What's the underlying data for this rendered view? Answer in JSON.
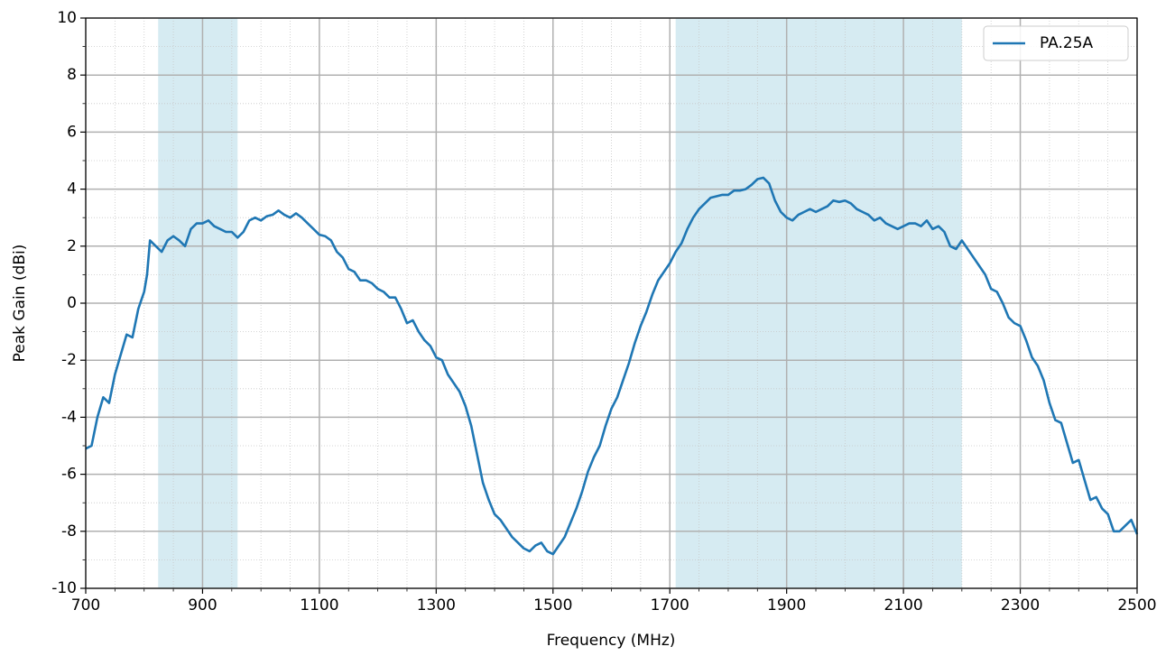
{
  "chart_data": {
    "type": "line",
    "xlabel": "Frequency (MHz)",
    "ylabel": "Peak Gain (dBi)",
    "x": [
      700,
      710,
      720,
      730,
      740,
      750,
      760,
      770,
      780,
      790,
      800,
      805,
      810,
      820,
      830,
      840,
      850,
      860,
      870,
      880,
      890,
      900,
      910,
      920,
      930,
      940,
      950,
      960,
      970,
      980,
      990,
      1000,
      1010,
      1020,
      1030,
      1040,
      1050,
      1060,
      1070,
      1080,
      1090,
      1100,
      1110,
      1120,
      1130,
      1140,
      1150,
      1160,
      1170,
      1180,
      1190,
      1200,
      1210,
      1220,
      1230,
      1240,
      1250,
      1260,
      1270,
      1280,
      1290,
      1300,
      1310,
      1320,
      1330,
      1340,
      1350,
      1360,
      1370,
      1380,
      1390,
      1400,
      1410,
      1420,
      1430,
      1440,
      1450,
      1460,
      1470,
      1480,
      1490,
      1500,
      1510,
      1520,
      1530,
      1540,
      1550,
      1560,
      1570,
      1580,
      1590,
      1600,
      1610,
      1620,
      1630,
      1640,
      1650,
      1660,
      1670,
      1680,
      1690,
      1700,
      1710,
      1720,
      1730,
      1740,
      1750,
      1760,
      1770,
      1780,
      1790,
      1800,
      1810,
      1820,
      1830,
      1840,
      1850,
      1860,
      1870,
      1880,
      1890,
      1900,
      1910,
      1920,
      1930,
      1940,
      1950,
      1960,
      1970,
      1980,
      1990,
      2000,
      2010,
      2020,
      2030,
      2040,
      2050,
      2060,
      2070,
      2080,
      2090,
      2100,
      2110,
      2120,
      2130,
      2140,
      2150,
      2160,
      2170,
      2180,
      2190,
      2200,
      2210,
      2220,
      2230,
      2240,
      2250,
      2260,
      2270,
      2280,
      2290,
      2300,
      2310,
      2320,
      2330,
      2340,
      2350,
      2360,
      2370,
      2380,
      2390,
      2400,
      2410,
      2420,
      2430,
      2440,
      2450,
      2460,
      2470,
      2480,
      2490,
      2500
    ],
    "series": [
      {
        "name": "PA.25A",
        "color": "#1f77b4",
        "values": [
          -5.1,
          -5.0,
          -4.0,
          -3.3,
          -3.5,
          -2.5,
          -1.8,
          -1.1,
          -1.2,
          -0.2,
          0.4,
          1.0,
          2.2,
          2.0,
          1.8,
          2.2,
          2.35,
          2.2,
          2.0,
          2.6,
          2.8,
          2.8,
          2.9,
          2.7,
          2.6,
          2.5,
          2.5,
          2.3,
          2.5,
          2.9,
          3.0,
          2.9,
          3.05,
          3.1,
          3.25,
          3.1,
          3.0,
          3.15,
          3.0,
          2.8,
          2.6,
          2.4,
          2.35,
          2.2,
          1.8,
          1.6,
          1.2,
          1.1,
          0.8,
          0.8,
          0.7,
          0.5,
          0.4,
          0.2,
          0.2,
          -0.2,
          -0.7,
          -0.6,
          -1.0,
          -1.3,
          -1.5,
          -1.9,
          -2.0,
          -2.5,
          -2.8,
          -3.1,
          -3.6,
          -4.3,
          -5.3,
          -6.3,
          -6.9,
          -7.4,
          -7.6,
          -7.9,
          -8.2,
          -8.4,
          -8.6,
          -8.7,
          -8.5,
          -8.4,
          -8.7,
          -8.8,
          -8.5,
          -8.2,
          -7.7,
          -7.2,
          -6.6,
          -5.9,
          -5.4,
          -5.0,
          -4.3,
          -3.7,
          -3.3,
          -2.7,
          -2.1,
          -1.4,
          -0.8,
          -0.3,
          0.3,
          0.8,
          1.1,
          1.4,
          1.8,
          2.1,
          2.6,
          3.0,
          3.3,
          3.5,
          3.7,
          3.75,
          3.8,
          3.8,
          3.95,
          3.95,
          4.0,
          4.15,
          4.35,
          4.4,
          4.2,
          3.6,
          3.2,
          3.0,
          2.9,
          3.1,
          3.2,
          3.3,
          3.2,
          3.3,
          3.4,
          3.6,
          3.55,
          3.6,
          3.5,
          3.3,
          3.2,
          3.1,
          2.9,
          3.0,
          2.8,
          2.7,
          2.6,
          2.7,
          2.8,
          2.8,
          2.7,
          2.9,
          2.6,
          2.7,
          2.5,
          2.0,
          1.9,
          2.2,
          1.9,
          1.6,
          1.3,
          1.0,
          0.5,
          0.4,
          0.0,
          -0.5,
          -0.7,
          -0.8,
          -1.3,
          -1.9,
          -2.2,
          -2.7,
          -3.5,
          -4.1,
          -4.2,
          -4.9,
          -5.6,
          -5.5,
          -6.2,
          -6.9,
          -6.8,
          -7.2,
          -7.4,
          -8.0,
          -8.0,
          -7.8,
          -7.6,
          -8.1
        ]
      }
    ],
    "shaded_regions": [
      {
        "x": [
          824,
          960
        ],
        "color": "#add8e6"
      },
      {
        "x": [
          1710,
          2200
        ],
        "color": "#add8e6"
      }
    ],
    "xlim": [
      700,
      2500
    ],
    "xticks": [
      700,
      900,
      1100,
      1300,
      1500,
      1700,
      1900,
      2100,
      2300,
      2500
    ],
    "ylim": [
      -10,
      10
    ],
    "yticks": [
      -10,
      -8,
      -6,
      -4,
      -2,
      0,
      2,
      4,
      6,
      8,
      10
    ],
    "grid": true,
    "minor_grid": true,
    "legend": "upper right"
  }
}
